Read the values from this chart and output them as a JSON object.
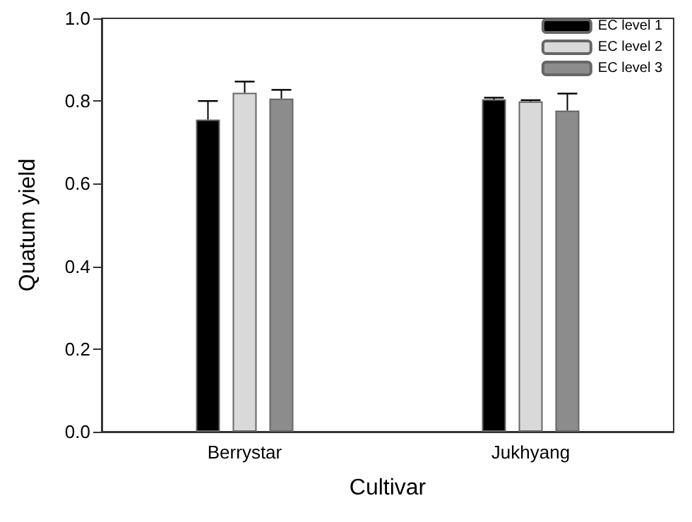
{
  "chart_data": {
    "type": "bar",
    "xlabel": "Cultivar",
    "ylabel": "Quatum yield",
    "categories": [
      "Berrystar",
      "Jukhyang"
    ],
    "series": [
      {
        "name": "EC level 1",
        "color": "#000000",
        "values": [
          0.755,
          0.804
        ],
        "errors": [
          [
            0.755,
            0.8
          ],
          [
            0.804,
            0.808
          ]
        ]
      },
      {
        "name": "EC level 2",
        "color": "#d9d9d9",
        "values": [
          0.82,
          0.799
        ],
        "errors": [
          [
            0.82,
            0.847
          ],
          [
            0.799,
            0.802
          ]
        ]
      },
      {
        "name": "EC level 3",
        "color": "#8c8c8c",
        "values": [
          0.806,
          0.777
        ],
        "errors": [
          [
            0.806,
            0.827
          ],
          [
            0.777,
            0.818
          ]
        ]
      }
    ],
    "ylim": [
      0,
      1
    ],
    "yticks": [
      {
        "value": 0,
        "label": "0.0"
      },
      0.2,
      0.4,
      0.6,
      0.8,
      {
        "value": 1,
        "label": "1.0"
      }
    ],
    "grid": false,
    "legend": "top right"
  }
}
